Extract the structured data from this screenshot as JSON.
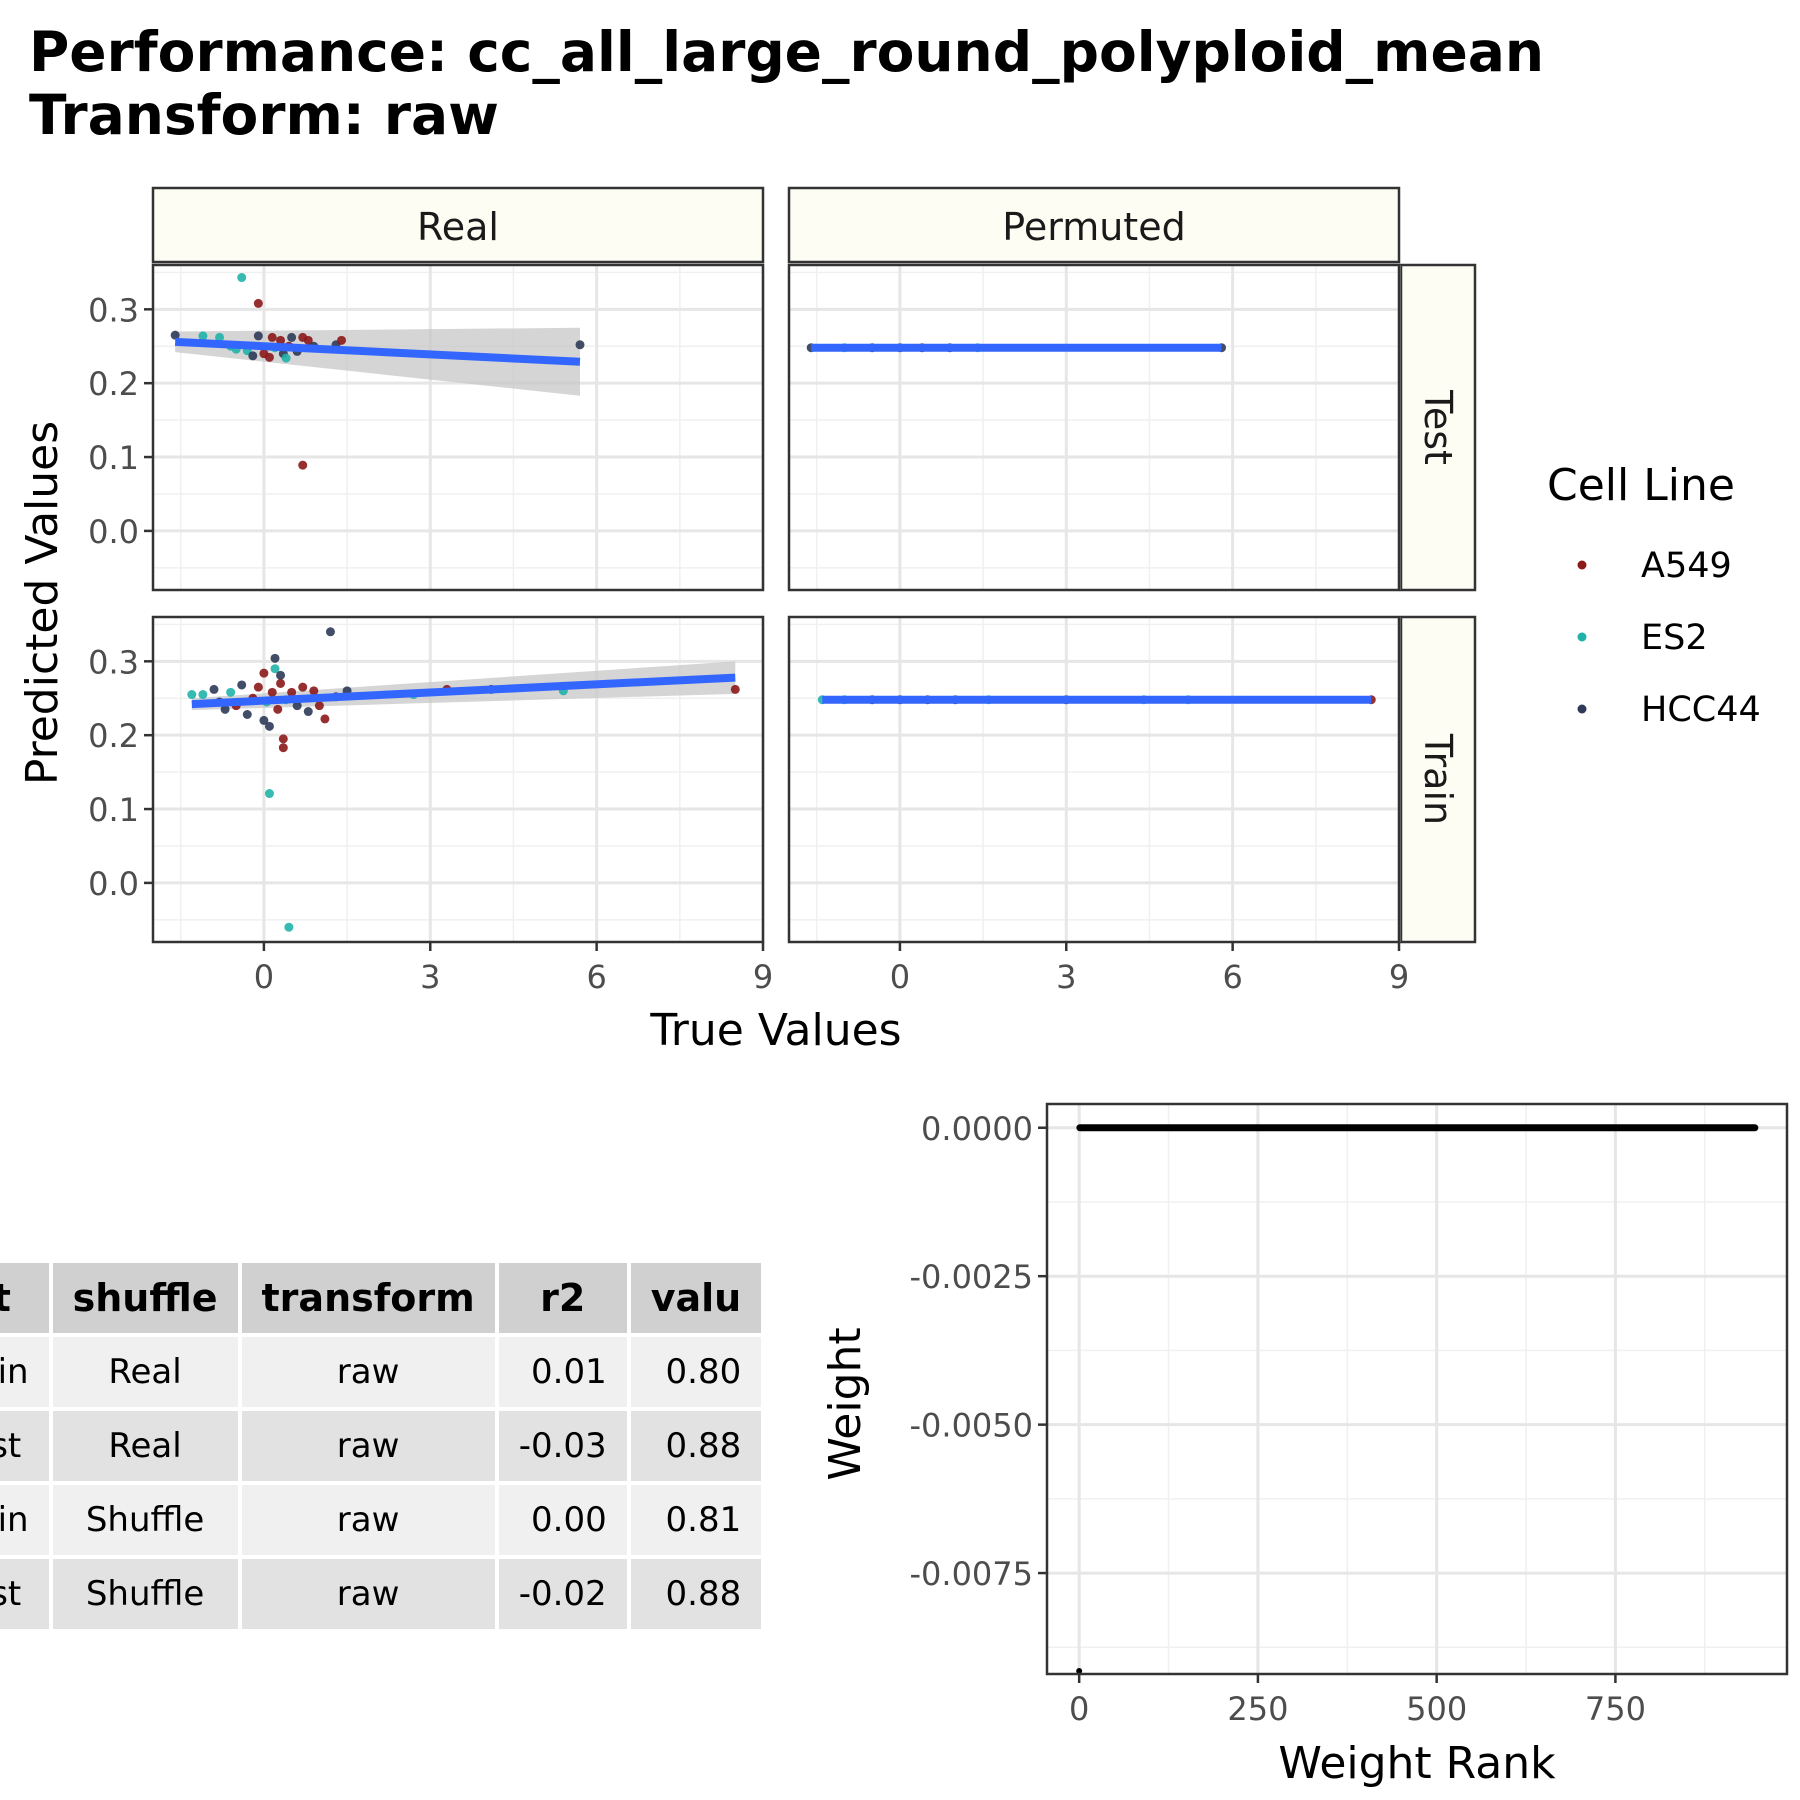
{
  "title_lines": [
    "Performance: cc_all_large_round_polyploid_mean",
    "Transform: raw"
  ],
  "colors": {
    "A549": "#8b1a1a",
    "ES2": "#20b2aa",
    "HCC44": "#2e3a57",
    "fit": "#3366ff",
    "band": "#c7c7c7",
    "strip": "#fdfdf3"
  },
  "chart_data": [
    {
      "type": "scatter",
      "facet_columns": [
        "Real",
        "Permuted"
      ],
      "facet_rows": [
        "Test",
        "Train"
      ],
      "xlabel": "True Values",
      "ylabel": "Predicted Values",
      "xlim": [
        -2,
        9
      ],
      "ylim": [
        -0.08,
        0.36
      ],
      "x_ticks": [
        0,
        3,
        6,
        9
      ],
      "y_ticks": [
        0.0,
        0.1,
        0.2,
        0.3
      ],
      "y_tick_labels": [
        "0.0",
        "0.1",
        "0.2",
        "0.3"
      ],
      "grid": true,
      "legend": {
        "title": "Cell Line",
        "entries": [
          "A549",
          "ES2",
          "HCC44"
        ],
        "position": "right"
      },
      "panels": [
        {
          "column": "Real",
          "row": "Test",
          "fit": {
            "x": [
              -1.6,
              5.7
            ],
            "y": [
              0.256,
              0.229
            ],
            "band_lo": [
              0.242,
              0.183
            ],
            "band_hi": [
              0.27,
              0.275
            ]
          },
          "points": [
            {
              "x": -0.4,
              "y": 0.343,
              "c": "ES2"
            },
            {
              "x": -0.1,
              "y": 0.308,
              "c": "A549"
            },
            {
              "x": -1.6,
              "y": 0.265,
              "c": "HCC44"
            },
            {
              "x": -1.1,
              "y": 0.264,
              "c": "ES2"
            },
            {
              "x": -0.8,
              "y": 0.262,
              "c": "ES2"
            },
            {
              "x": -0.6,
              "y": 0.25,
              "c": "ES2"
            },
            {
              "x": -0.5,
              "y": 0.246,
              "c": "ES2"
            },
            {
              "x": -0.3,
              "y": 0.244,
              "c": "ES2"
            },
            {
              "x": -0.2,
              "y": 0.237,
              "c": "HCC44"
            },
            {
              "x": -0.1,
              "y": 0.264,
              "c": "HCC44"
            },
            {
              "x": 0.0,
              "y": 0.24,
              "c": "A549"
            },
            {
              "x": 0.1,
              "y": 0.235,
              "c": "A549"
            },
            {
              "x": 0.15,
              "y": 0.262,
              "c": "A549"
            },
            {
              "x": 0.2,
              "y": 0.248,
              "c": "ES2"
            },
            {
              "x": 0.3,
              "y": 0.258,
              "c": "A549"
            },
            {
              "x": 0.35,
              "y": 0.24,
              "c": "HCC44"
            },
            {
              "x": 0.4,
              "y": 0.234,
              "c": "ES2"
            },
            {
              "x": 0.45,
              "y": 0.25,
              "c": "A549"
            },
            {
              "x": 0.5,
              "y": 0.262,
              "c": "HCC44"
            },
            {
              "x": 0.6,
              "y": 0.243,
              "c": "HCC44"
            },
            {
              "x": 0.7,
              "y": 0.262,
              "c": "A549"
            },
            {
              "x": 0.8,
              "y": 0.258,
              "c": "A549"
            },
            {
              "x": 0.9,
              "y": 0.25,
              "c": "HCC44"
            },
            {
              "x": 1.3,
              "y": 0.252,
              "c": "HCC44"
            },
            {
              "x": 1.4,
              "y": 0.258,
              "c": "A549"
            },
            {
              "x": 0.7,
              "y": 0.089,
              "c": "A549"
            },
            {
              "x": 5.7,
              "y": 0.252,
              "c": "HCC44"
            }
          ]
        },
        {
          "column": "Permuted",
          "row": "Test",
          "fit": {
            "x": [
              -1.6,
              5.8
            ],
            "y": [
              0.248,
              0.248
            ]
          },
          "points": [
            {
              "x": -1.6,
              "y": 0.248,
              "c": "HCC44"
            },
            {
              "x": -1.0,
              "y": 0.248,
              "c": "ES2"
            },
            {
              "x": -0.5,
              "y": 0.248,
              "c": "HCC44"
            },
            {
              "x": 0.0,
              "y": 0.248,
              "c": "HCC44"
            },
            {
              "x": 0.4,
              "y": 0.248,
              "c": "A549"
            },
            {
              "x": 0.9,
              "y": 0.248,
              "c": "HCC44"
            },
            {
              "x": 1.4,
              "y": 0.248,
              "c": "ES2"
            },
            {
              "x": 5.8,
              "y": 0.248,
              "c": "HCC44"
            }
          ]
        },
        {
          "column": "Real",
          "row": "Train",
          "fit": {
            "x": [
              -1.3,
              8.5
            ],
            "y": [
              0.242,
              0.278
            ],
            "band_lo": [
              0.234,
              0.256
            ],
            "band_hi": [
              0.25,
              0.3
            ]
          },
          "points": [
            {
              "x": 1.2,
              "y": 0.34,
              "c": "HCC44"
            },
            {
              "x": 0.2,
              "y": 0.304,
              "c": "HCC44"
            },
            {
              "x": 0.2,
              "y": 0.29,
              "c": "ES2"
            },
            {
              "x": 0.0,
              "y": 0.284,
              "c": "A549"
            },
            {
              "x": 0.3,
              "y": 0.281,
              "c": "HCC44"
            },
            {
              "x": -1.3,
              "y": 0.255,
              "c": "ES2"
            },
            {
              "x": -1.1,
              "y": 0.255,
              "c": "ES2"
            },
            {
              "x": -0.9,
              "y": 0.262,
              "c": "HCC44"
            },
            {
              "x": -0.8,
              "y": 0.245,
              "c": "HCC44"
            },
            {
              "x": -0.7,
              "y": 0.235,
              "c": "HCC44"
            },
            {
              "x": -0.6,
              "y": 0.258,
              "c": "ES2"
            },
            {
              "x": -0.5,
              "y": 0.24,
              "c": "A549"
            },
            {
              "x": -0.4,
              "y": 0.268,
              "c": "HCC44"
            },
            {
              "x": -0.3,
              "y": 0.228,
              "c": "HCC44"
            },
            {
              "x": -0.2,
              "y": 0.25,
              "c": "A549"
            },
            {
              "x": -0.1,
              "y": 0.265,
              "c": "A549"
            },
            {
              "x": 0.0,
              "y": 0.22,
              "c": "HCC44"
            },
            {
              "x": 0.05,
              "y": 0.245,
              "c": "ES2"
            },
            {
              "x": 0.1,
              "y": 0.212,
              "c": "HCC44"
            },
            {
              "x": 0.15,
              "y": 0.258,
              "c": "A549"
            },
            {
              "x": 0.25,
              "y": 0.235,
              "c": "A549"
            },
            {
              "x": 0.3,
              "y": 0.27,
              "c": "A549"
            },
            {
              "x": 0.4,
              "y": 0.248,
              "c": "ES2"
            },
            {
              "x": 0.5,
              "y": 0.258,
              "c": "A549"
            },
            {
              "x": 0.6,
              "y": 0.24,
              "c": "HCC44"
            },
            {
              "x": 0.7,
              "y": 0.265,
              "c": "A549"
            },
            {
              "x": 0.8,
              "y": 0.232,
              "c": "HCC44"
            },
            {
              "x": 0.9,
              "y": 0.26,
              "c": "A549"
            },
            {
              "x": 1.0,
              "y": 0.24,
              "c": "A549"
            },
            {
              "x": 1.1,
              "y": 0.222,
              "c": "A549"
            },
            {
              "x": 1.3,
              "y": 0.252,
              "c": "HCC44"
            },
            {
              "x": 1.5,
              "y": 0.26,
              "c": "HCC44"
            },
            {
              "x": 0.35,
              "y": 0.195,
              "c": "A549"
            },
            {
              "x": 0.35,
              "y": 0.183,
              "c": "A549"
            },
            {
              "x": 0.1,
              "y": 0.121,
              "c": "ES2"
            },
            {
              "x": 0.45,
              "y": -0.06,
              "c": "ES2"
            },
            {
              "x": 3.3,
              "y": 0.262,
              "c": "A549"
            },
            {
              "x": 4.1,
              "y": 0.262,
              "c": "HCC44"
            },
            {
              "x": 2.7,
              "y": 0.255,
              "c": "ES2"
            },
            {
              "x": 5.4,
              "y": 0.26,
              "c": "ES2"
            },
            {
              "x": 8.5,
              "y": 0.262,
              "c": "A549"
            }
          ]
        },
        {
          "column": "Permuted",
          "row": "Train",
          "fit": {
            "x": [
              -1.4,
              8.5
            ],
            "y": [
              0.248,
              0.248
            ]
          },
          "points": [
            {
              "x": -1.4,
              "y": 0.248,
              "c": "ES2"
            },
            {
              "x": -1.0,
              "y": 0.248,
              "c": "ES2"
            },
            {
              "x": -0.5,
              "y": 0.248,
              "c": "HCC44"
            },
            {
              "x": 0.0,
              "y": 0.248,
              "c": "HCC44"
            },
            {
              "x": 0.5,
              "y": 0.248,
              "c": "A549"
            },
            {
              "x": 1.0,
              "y": 0.248,
              "c": "HCC44"
            },
            {
              "x": 1.6,
              "y": 0.248,
              "c": "ES2"
            },
            {
              "x": 3.0,
              "y": 0.248,
              "c": "HCC44"
            },
            {
              "x": 4.4,
              "y": 0.248,
              "c": "ES2"
            },
            {
              "x": 5.2,
              "y": 0.248,
              "c": "ES2"
            },
            {
              "x": 8.5,
              "y": 0.248,
              "c": "A549"
            }
          ]
        }
      ]
    },
    {
      "type": "table",
      "columns": [
        "fit",
        "shuffle",
        "transform",
        "r2",
        "value"
      ],
      "column_labels": [
        "fit",
        "shuffle",
        "transform",
        "r2",
        "valu"
      ],
      "rows": [
        [
          "Train",
          "Real",
          "raw",
          "0.01",
          "0.80"
        ],
        [
          "Test",
          "Real",
          "raw",
          "-0.03",
          "0.88"
        ],
        [
          "Train",
          "Shuffle",
          "raw",
          "0.00",
          "0.81"
        ],
        [
          "Test",
          "Shuffle",
          "raw",
          "-0.02",
          "0.88"
        ]
      ]
    },
    {
      "type": "line",
      "xlabel": "Weight Rank",
      "ylabel": "Weight",
      "xlim": [
        -45,
        990
      ],
      "ylim": [
        -0.0092,
        0.0004
      ],
      "x_ticks": [
        0,
        250,
        500,
        750
      ],
      "x_tick_labels": [
        "0",
        "250",
        "500",
        "750"
      ],
      "y_ticks": [
        0.0,
        -0.0025,
        -0.005,
        -0.0075
      ],
      "y_tick_labels": [
        "0.0000",
        "-0.0025",
        "-0.0050",
        "-0.0075"
      ],
      "grid": true,
      "series": [
        {
          "x": [
            1,
            945
          ],
          "y": [
            0.0,
            0.0
          ]
        }
      ],
      "outlier": {
        "x": 0,
        "y": -0.00915
      }
    }
  ]
}
